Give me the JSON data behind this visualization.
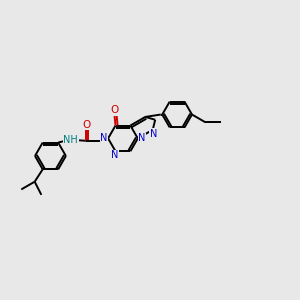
{
  "bg": "#e8e8e8",
  "bc": "#000000",
  "Nc": "#0000cc",
  "Oc": "#cc0000",
  "NHc": "#008080",
  "figsize": [
    3.0,
    3.0
  ],
  "dpi": 100,
  "lw": 1.4,
  "fs": 7.0,
  "xlim": [
    0,
    10
  ],
  "ylim": [
    2,
    9
  ]
}
